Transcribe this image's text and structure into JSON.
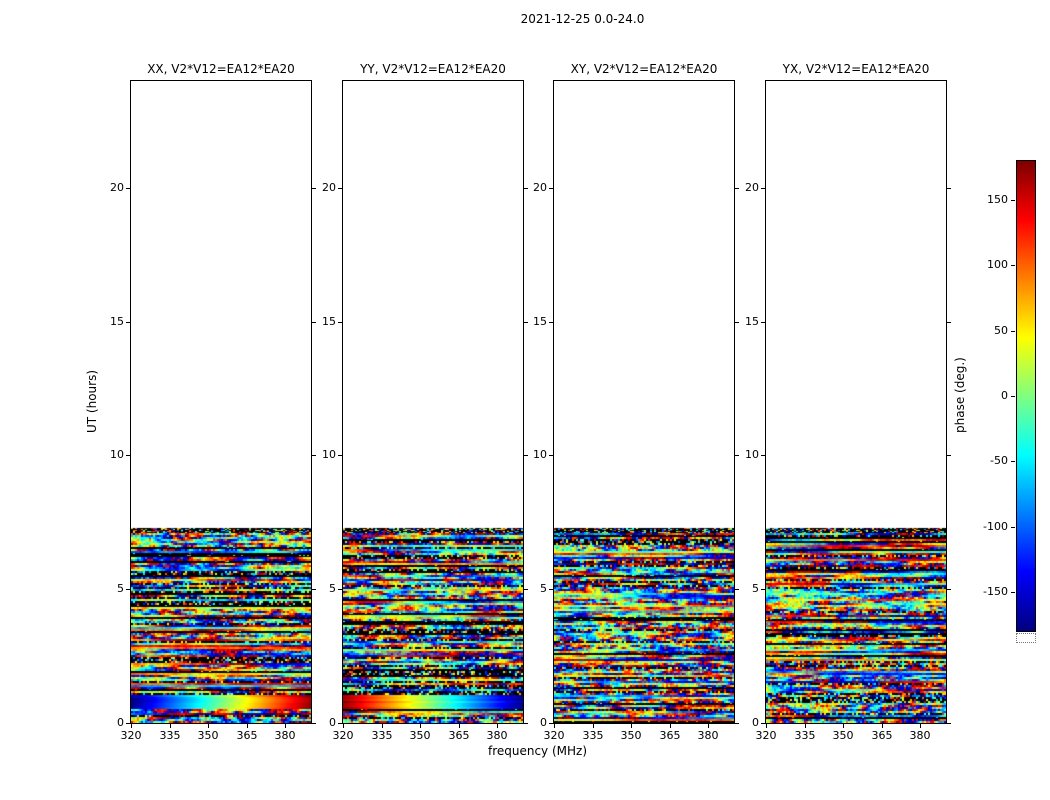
{
  "chart_data": {
    "type": "heatmap",
    "title": "2021-12-25 0.0-24.0",
    "xlabel": "frequency (MHz)",
    "ylabel": "UT (hours)",
    "xlim": [
      320,
      390
    ],
    "ylim": [
      0,
      24
    ],
    "x_ticks": [
      320,
      335,
      350,
      365,
      380
    ],
    "y_ticks": [
      0,
      5,
      10,
      15,
      20
    ],
    "panels": [
      {
        "pol": "XX",
        "label": "XX, V2*V12=EA12*EA20",
        "bottom_band_gradient": "blue-to-red"
      },
      {
        "pol": "YY",
        "label": "YY, V2*V12=EA12*EA20",
        "bottom_band_gradient": "red-to-blue"
      },
      {
        "pol": "XY",
        "label": "XY, V2*V12=EA12*EA20",
        "bottom_band_gradient": "none"
      },
      {
        "pol": "YX",
        "label": "YX, V2*V12=EA12*EA20",
        "bottom_band_gradient": "none"
      }
    ],
    "colorbar": {
      "label": "phase (deg.)",
      "ticks": [
        150,
        100,
        50,
        0,
        -50,
        -100,
        -150
      ],
      "min": -180,
      "max": 180,
      "colormap": "jet"
    },
    "data_extent_hours": [
      0,
      7.3
    ],
    "data_description": "Interferometric visibility phase versus frequency (320-390 MHz) and UT time (0-24 h) for baseline V2*V12=EA12*EA20 on 2021-12-25, shown for the four polarization products XX, YY, XY, YX. Noise-like phases spanning the full -180 to +180 degree range fill UT 0 to ~7.3 h as dense horizontal color bands interleaved with black (flagged) integrations; above ~7.3 h there is no data (white). Near UT ~0.8 h the XX and YY panels show a smooth phase gradient sweeping across the band (blue-to-red in XX, red-to-blue in YY)."
  }
}
